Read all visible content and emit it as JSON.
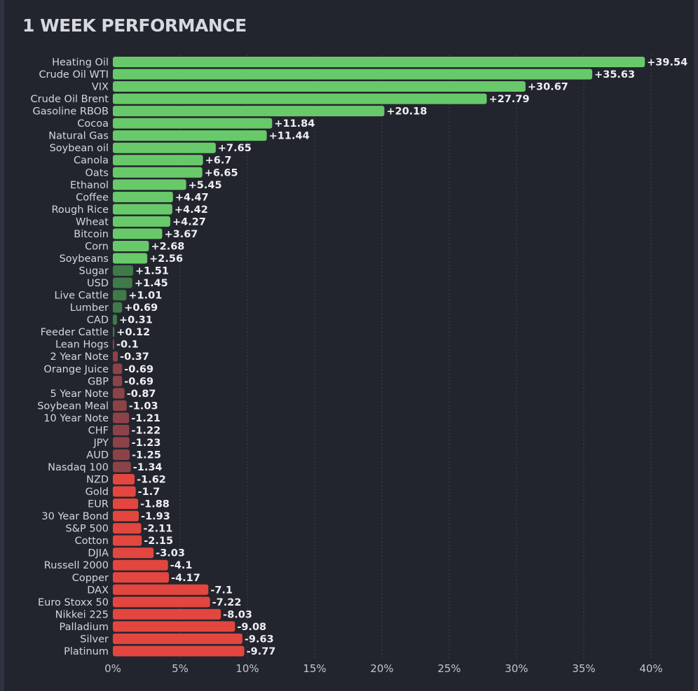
{
  "page": {
    "title": "1 WEEK PERFORMANCE"
  },
  "colors": {
    "positive_strong": "#68c96a",
    "positive_weak": "#3f7a48",
    "negative_strong": "#e2463f",
    "negative_weak": "#8c4348",
    "grid": "#3c3f4c",
    "label": "#d4d6dd",
    "value": "#eef0f4",
    "tick": "#c2c5ce"
  },
  "chart_data": {
    "type": "bar",
    "orientation": "horizontal",
    "title": "1 WEEK PERFORMANCE",
    "xlabel": "",
    "ylabel": "",
    "xlim": [
      0,
      40
    ],
    "x_ticks": [
      "0%",
      "5%",
      "10%",
      "15%",
      "20%",
      "25%",
      "30%",
      "35%",
      "40%"
    ],
    "bar_length": "absolute value",
    "grid": true,
    "categories": [
      "Heating Oil",
      "Crude Oil WTI",
      "VIX",
      "Crude Oil Brent",
      "Gasoline RBOB",
      "Cocoa",
      "Natural Gas",
      "Soybean oil",
      "Canola",
      "Oats",
      "Ethanol",
      "Coffee",
      "Rough Rice",
      "Wheat",
      "Bitcoin",
      "Corn",
      "Soybeans",
      "Sugar",
      "USD",
      "Live Cattle",
      "Lumber",
      "CAD",
      "Feeder Cattle",
      "Lean Hogs",
      "2 Year Note",
      "Orange Juice",
      "GBP",
      "5 Year Note",
      "Soybean Meal",
      "10 Year Note",
      "CHF",
      "JPY",
      "AUD",
      "Nasdaq 100",
      "NZD",
      "Gold",
      "EUR",
      "30 Year Bond",
      "S&P 500",
      "Cotton",
      "DJIA",
      "Russell 2000",
      "Copper",
      "DAX",
      "Euro Stoxx 50",
      "Nikkei 225",
      "Palladium",
      "Silver",
      "Platinum"
    ],
    "values": [
      39.54,
      35.63,
      30.67,
      27.79,
      20.18,
      11.84,
      11.44,
      7.65,
      6.7,
      6.65,
      5.45,
      4.47,
      4.42,
      4.27,
      3.67,
      2.68,
      2.56,
      1.51,
      1.45,
      1.01,
      0.69,
      0.31,
      0.12,
      -0.1,
      -0.37,
      -0.69,
      -0.69,
      -0.87,
      -1.03,
      -1.21,
      -1.22,
      -1.23,
      -1.25,
      -1.34,
      -1.62,
      -1.7,
      -1.88,
      -1.93,
      -2.11,
      -2.15,
      -3.03,
      -4.1,
      -4.17,
      -7.1,
      -7.22,
      -8.03,
      -9.08,
      -9.63,
      -9.77
    ],
    "value_labels": [
      "+39.54",
      "+35.63",
      "+30.67",
      "+27.79",
      "+20.18",
      "+11.84",
      "+11.44",
      "+7.65",
      "+6.7",
      "+6.65",
      "+5.45",
      "+4.47",
      "+4.42",
      "+4.27",
      "+3.67",
      "+2.68",
      "+2.56",
      "+1.51",
      "+1.45",
      "+1.01",
      "+0.69",
      "+0.31",
      "+0.12",
      "-0.1",
      "-0.37",
      "-0.69",
      "-0.69",
      "-0.87",
      "-1.03",
      "-1.21",
      "-1.22",
      "-1.23",
      "-1.25",
      "-1.34",
      "-1.62",
      "-1.7",
      "-1.88",
      "-1.93",
      "-2.11",
      "-2.15",
      "-3.03",
      "-4.1",
      "-4.17",
      "-7.1",
      "-7.22",
      "-8.03",
      "-9.08",
      "-9.63",
      "-9.77"
    ]
  }
}
